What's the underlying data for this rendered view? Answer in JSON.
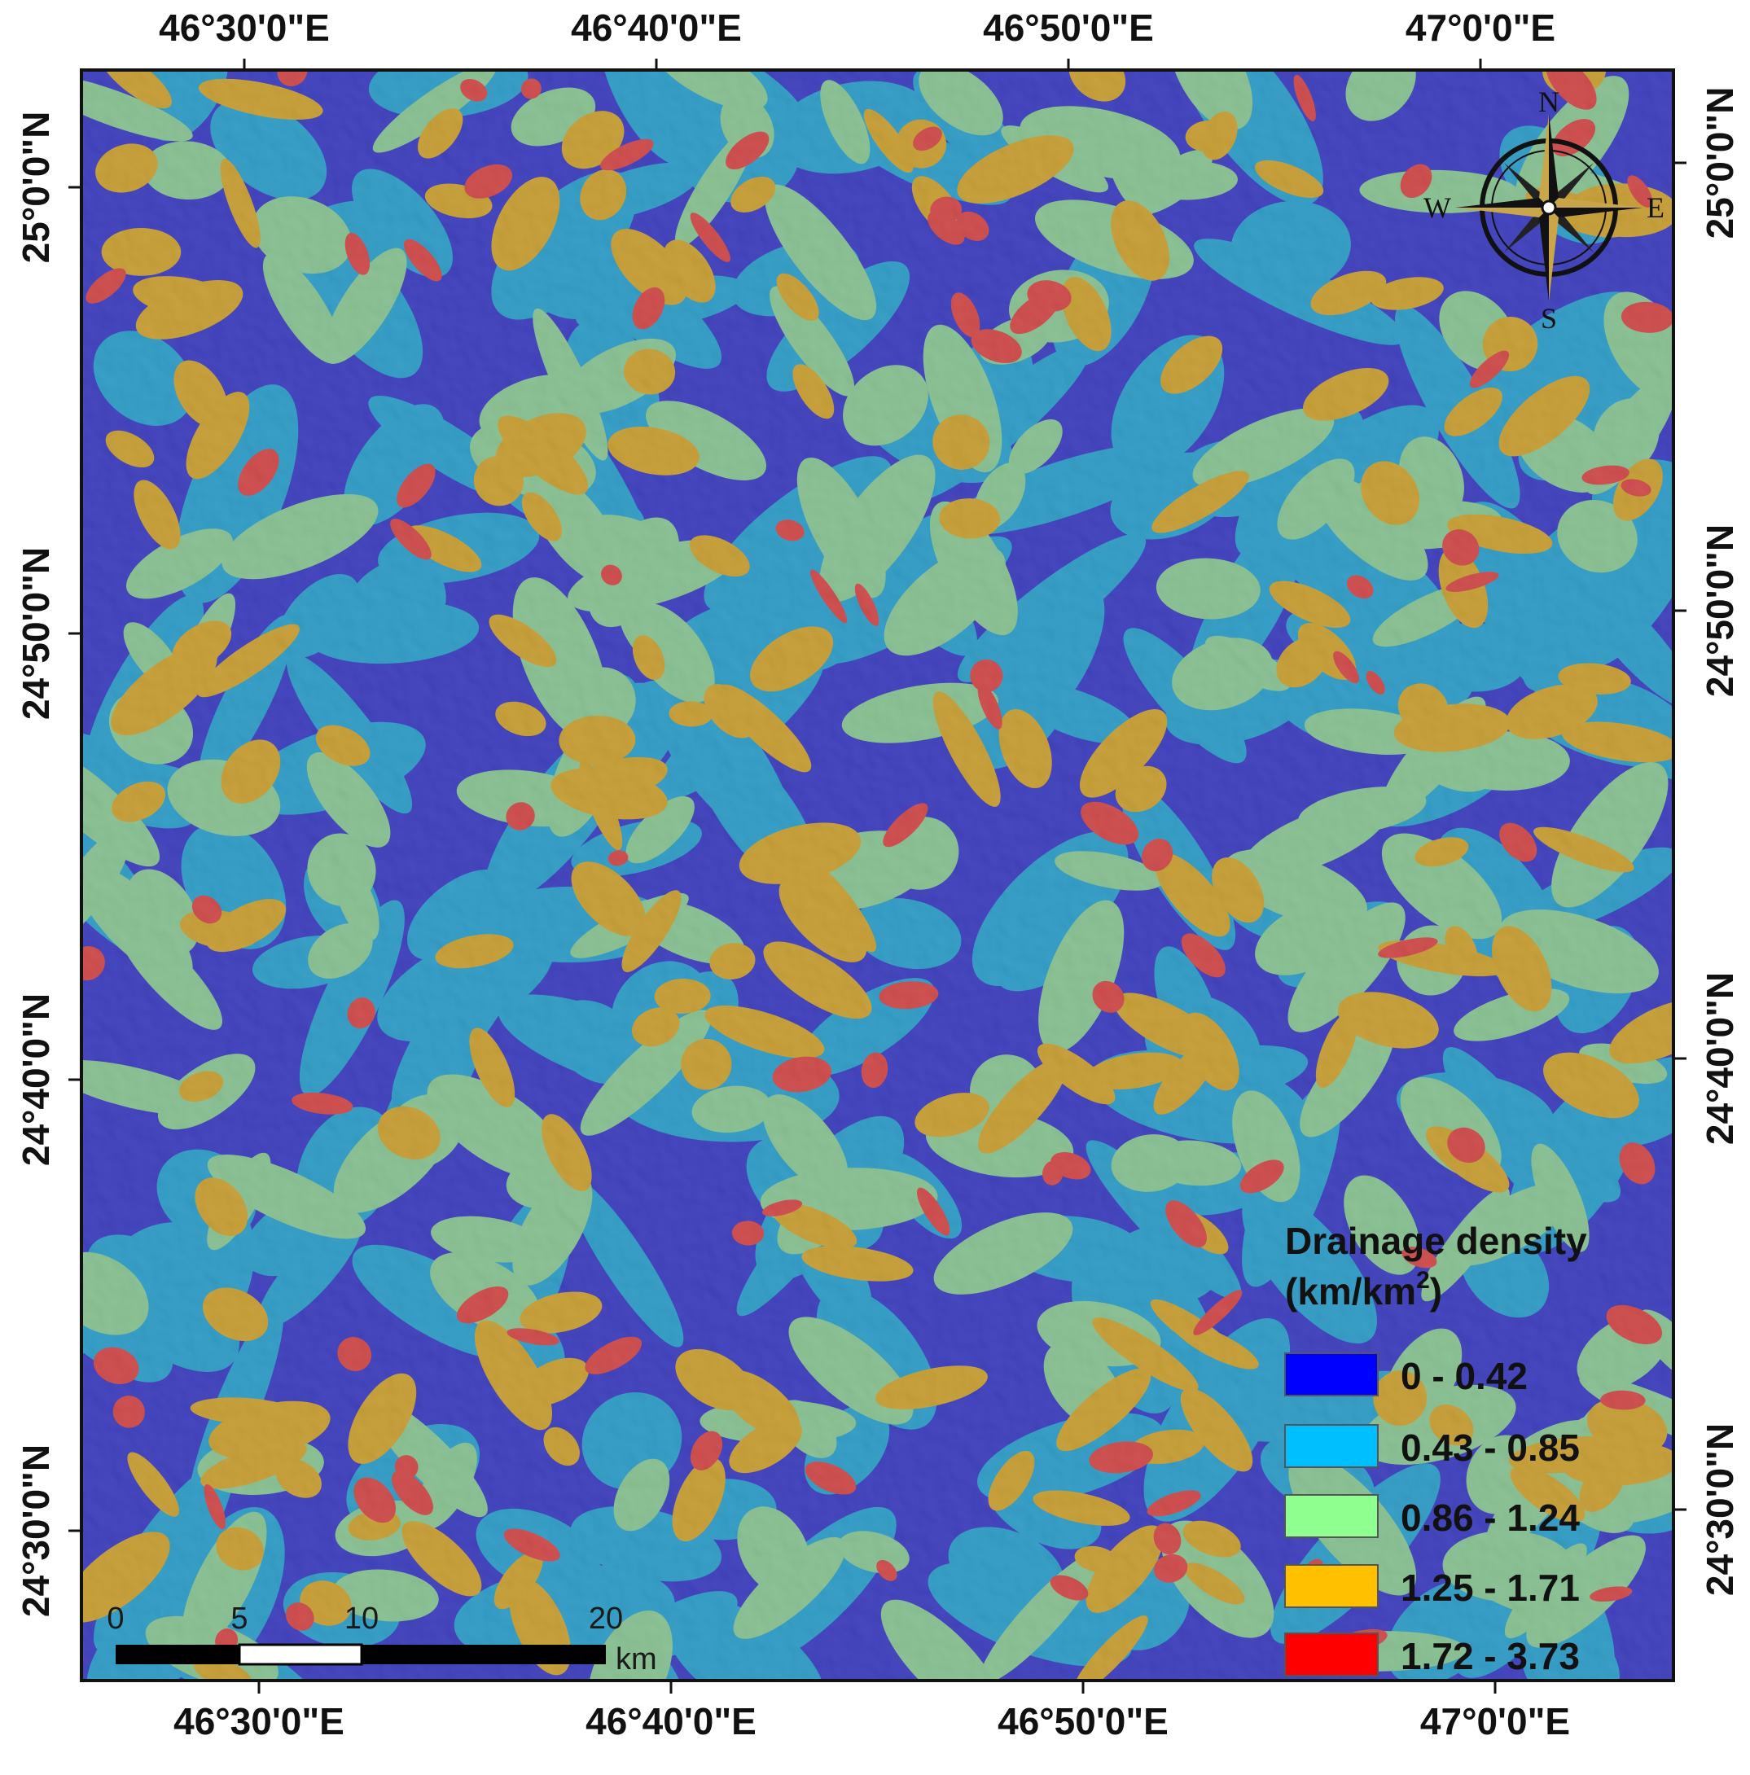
{
  "map": {
    "top_ticks": [
      "46°30'0\"E",
      "46°40'0\"E",
      "46°50'0\"E",
      "47°0'0\"E"
    ],
    "bottom_ticks": [
      "46°30'0\"E",
      "46°40'0\"E",
      "46°50'0\"E",
      "47°0'0\"E"
    ],
    "left_ticks": [
      "25°0'0\"N",
      "24°50'0\"N",
      "24°40'0\"N",
      "24°30'0\"N"
    ],
    "right_ticks": [
      "25°0'0\"N",
      "24°50'0\"N",
      "24°40'0\"N",
      "24°30'0\"N"
    ]
  },
  "legend": {
    "title_line1": "Drainage density",
    "title_line2_base": "(km/km",
    "title_line2_sup": "2",
    "title_line2_close": ")",
    "classes": [
      {
        "label": "0 - 0.42",
        "color": "#0000ff"
      },
      {
        "label": "0.43 - 0.85",
        "color": "#00bfff"
      },
      {
        "label": "0.86 - 1.24",
        "color": "#8fff8f"
      },
      {
        "label": "1.25 - 1.71",
        "color": "#ffc000"
      },
      {
        "label": "1.72 - 3.73",
        "color": "#ff0000"
      }
    ]
  },
  "scale_bar": {
    "labels": [
      "0",
      "5",
      "10",
      "20"
    ],
    "unit": "km"
  },
  "north_arrow": {
    "N": "N",
    "S": "S",
    "E": "E",
    "W": "W"
  },
  "palette": {
    "class_1": "#3a3acc",
    "class_2": "#2aa6d6",
    "class_3": "#8fcf9a",
    "class_4": "#d8a830",
    "class_5": "#e04848"
  }
}
